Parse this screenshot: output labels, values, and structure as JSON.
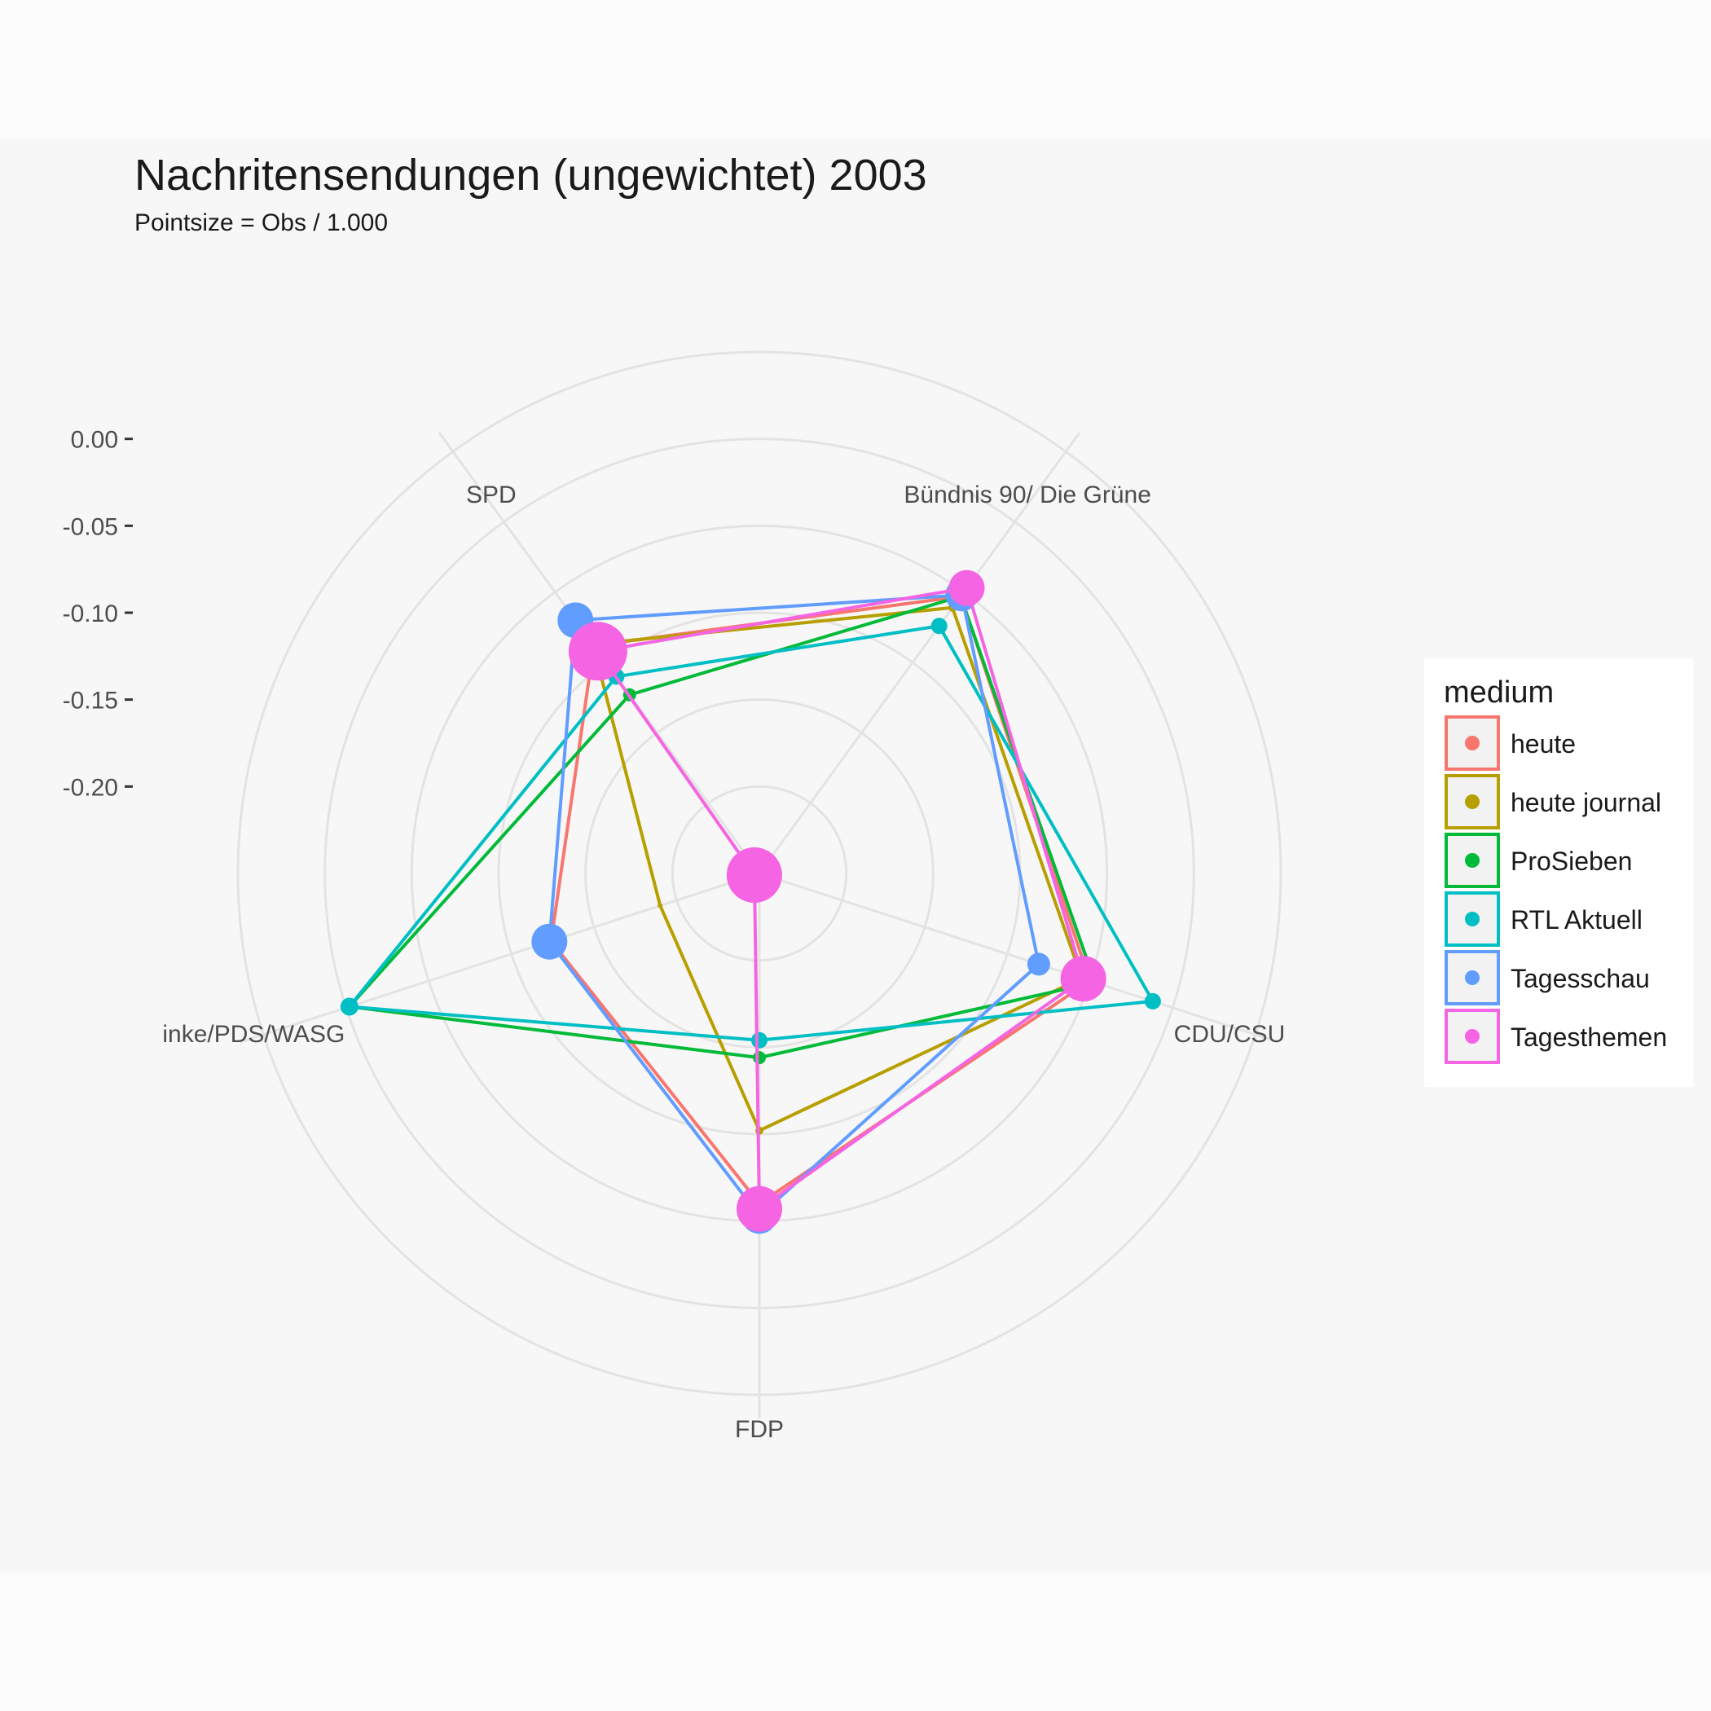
{
  "chart_data": {
    "type": "radar",
    "title": "Nachritensendungen (ungewichtet) 2003",
    "subtitle": "Pointsize = Obs / 1.000",
    "axes": [
      "SPD",
      "Bündnis 90/ Die Grüne",
      "CDU/CSU",
      "FDP",
      "inke/PDS/WASG"
    ],
    "radial_ticks": [
      "0.00",
      "-0.05",
      "-0.10",
      "-0.15",
      "-0.20"
    ],
    "radial_tick_values": [
      0.0,
      -0.05,
      -0.1,
      -0.15,
      -0.2
    ],
    "rlim": [
      -0.25,
      0.05
    ],
    "grid": true,
    "legend": {
      "title": "medium",
      "position": "right"
    },
    "series": [
      {
        "name": "heute",
        "color": "#F8766D",
        "values": [
          -0.088,
          -0.053,
          -0.05,
          -0.06,
          -0.124
        ],
        "sizes": [
          6,
          6,
          6,
          8,
          6
        ]
      },
      {
        "name": "heute journal",
        "color": "#B79F00",
        "values": [
          -0.087,
          -0.061,
          -0.055,
          -0.102,
          -0.19
        ],
        "sizes": [
          5,
          5,
          5,
          5,
          3
        ]
      },
      {
        "name": "ProSieben",
        "color": "#00BA38",
        "values": [
          -0.123,
          -0.053,
          -0.047,
          -0.144,
          -0.002
        ],
        "sizes": [
          8,
          6,
          6,
          8,
          6
        ]
      },
      {
        "name": "RTL Aktuell",
        "color": "#00BFC4",
        "values": [
          -0.11,
          -0.074,
          -0.012,
          -0.154,
          -0.002
        ],
        "sizes": [
          10,
          10,
          10,
          10,
          11
        ]
      },
      {
        "name": "Tagesschau",
        "color": "#619CFF",
        "values": [
          -0.07,
          -0.052,
          -0.081,
          -0.053,
          -0.123
        ],
        "sizes": [
          22,
          20,
          14,
          22,
          22
        ]
      },
      {
        "name": "Tagesthemen",
        "color": "#F564E3",
        "values": [
          -0.092,
          -0.047,
          -0.054,
          -0.057,
          -0.247
        ],
        "sizes": [
          36,
          22,
          28,
          28,
          34
        ]
      }
    ]
  }
}
